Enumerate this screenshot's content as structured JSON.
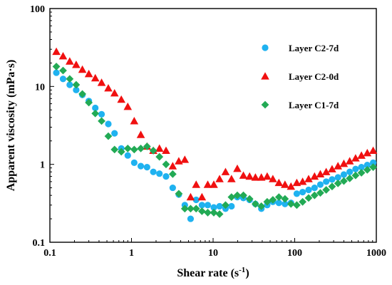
{
  "chart_data": {
    "type": "scatter",
    "title": "",
    "x_scale": "log",
    "y_scale": "log",
    "xlim": [
      0.1,
      1000
    ],
    "ylim": [
      0.1,
      100
    ],
    "x_ticks": [
      "0.1",
      "1",
      "10",
      "100",
      "1000"
    ],
    "y_ticks": [
      "0.1",
      "1",
      "10",
      "100"
    ],
    "xlabel": "Shear rate (s",
    "xlabel_sup": "-1",
    "xlabel_suffix": ")",
    "ylabel": "Apparent viscosity (mPa·s)",
    "grid": false,
    "legend_position": "top-right",
    "series": [
      {
        "name": "Layer C2-7d",
        "marker": "circle",
        "color": "#1fb2f0",
        "x": [
          0.12,
          0.145,
          0.175,
          0.21,
          0.25,
          0.3,
          0.36,
          0.43,
          0.52,
          0.62,
          0.75,
          0.9,
          1.08,
          1.3,
          1.55,
          1.85,
          2.2,
          2.65,
          3.2,
          3.8,
          4.5,
          5.3,
          6.2,
          7.3,
          8.6,
          10.2,
          12.0,
          14.2,
          16.8,
          19.8,
          23.5,
          28.0,
          33.0,
          39.0,
          46.0,
          54.0,
          64.0,
          76.0,
          90.0,
          106.0,
          125.0,
          148.0,
          175.0,
          206.0,
          243.0,
          287.0,
          339.0,
          400.0,
          472.0,
          557.0,
          657.0,
          775.0,
          915.0
        ],
        "y": [
          15.0,
          12.5,
          10.5,
          9.0,
          7.8,
          6.5,
          5.3,
          4.4,
          3.3,
          2.5,
          1.6,
          1.3,
          1.05,
          0.95,
          0.92,
          0.8,
          0.76,
          0.7,
          0.5,
          0.41,
          0.3,
          0.2,
          0.35,
          0.3,
          0.3,
          0.28,
          0.29,
          0.27,
          0.29,
          0.38,
          0.37,
          0.35,
          0.31,
          0.27,
          0.3,
          0.33,
          0.32,
          0.31,
          0.32,
          0.42,
          0.44,
          0.47,
          0.5,
          0.55,
          0.6,
          0.64,
          0.68,
          0.74,
          0.8,
          0.87,
          0.92,
          0.98,
          1.05
        ]
      },
      {
        "name": "Layer C2-0d",
        "marker": "triangle",
        "color": "#f01010",
        "x": [
          0.12,
          0.145,
          0.175,
          0.21,
          0.25,
          0.3,
          0.36,
          0.43,
          0.52,
          0.62,
          0.75,
          0.9,
          1.08,
          1.3,
          1.55,
          1.85,
          2.2,
          2.65,
          3.2,
          3.8,
          4.5,
          5.3,
          6.2,
          7.3,
          8.6,
          10.2,
          12.0,
          14.2,
          16.8,
          19.8,
          23.5,
          28.0,
          33.0,
          39.0,
          46.0,
          54.0,
          64.0,
          76.0,
          90.0,
          106.0,
          125.0,
          148.0,
          175.0,
          206.0,
          243.0,
          287.0,
          339.0,
          400.0,
          472.0,
          557.0,
          657.0,
          775.0,
          915.0
        ],
        "y": [
          28.0,
          24.5,
          21.0,
          19.0,
          16.5,
          14.5,
          12.8,
          11.2,
          9.5,
          8.2,
          6.8,
          5.5,
          3.6,
          2.4,
          1.7,
          1.5,
          1.6,
          1.5,
          0.95,
          1.1,
          1.15,
          0.38,
          0.55,
          0.38,
          0.55,
          0.55,
          0.65,
          0.8,
          0.65,
          0.88,
          0.72,
          0.7,
          0.68,
          0.68,
          0.7,
          0.65,
          0.58,
          0.55,
          0.52,
          0.58,
          0.6,
          0.65,
          0.7,
          0.75,
          0.8,
          0.87,
          0.95,
          1.02,
          1.1,
          1.2,
          1.3,
          1.4,
          1.5
        ]
      },
      {
        "name": "Layer C1-7d",
        "marker": "diamond",
        "color": "#22aa55",
        "x": [
          0.12,
          0.145,
          0.175,
          0.21,
          0.25,
          0.3,
          0.36,
          0.43,
          0.52,
          0.62,
          0.75,
          0.9,
          1.08,
          1.3,
          1.55,
          1.85,
          2.2,
          2.65,
          3.2,
          3.8,
          4.5,
          5.3,
          6.2,
          7.3,
          8.6,
          10.2,
          12.0,
          14.2,
          16.8,
          19.8,
          23.5,
          28.0,
          33.0,
          39.0,
          46.0,
          54.0,
          64.0,
          76.0,
          90.0,
          106.0,
          125.0,
          148.0,
          175.0,
          206.0,
          243.0,
          287.0,
          339.0,
          400.0,
          472.0,
          557.0,
          657.0,
          775.0,
          915.0
        ],
        "y": [
          18.0,
          16.0,
          12.5,
          10.5,
          8.0,
          6.2,
          4.5,
          3.6,
          2.3,
          1.55,
          1.45,
          1.6,
          1.55,
          1.6,
          1.7,
          1.5,
          1.25,
          1.0,
          0.75,
          0.42,
          0.27,
          0.27,
          0.27,
          0.25,
          0.24,
          0.24,
          0.23,
          0.3,
          0.38,
          0.4,
          0.4,
          0.36,
          0.31,
          0.29,
          0.33,
          0.35,
          0.38,
          0.36,
          0.31,
          0.3,
          0.33,
          0.37,
          0.4,
          0.43,
          0.47,
          0.52,
          0.57,
          0.61,
          0.66,
          0.72,
          0.78,
          0.85,
          0.92
        ]
      }
    ]
  }
}
